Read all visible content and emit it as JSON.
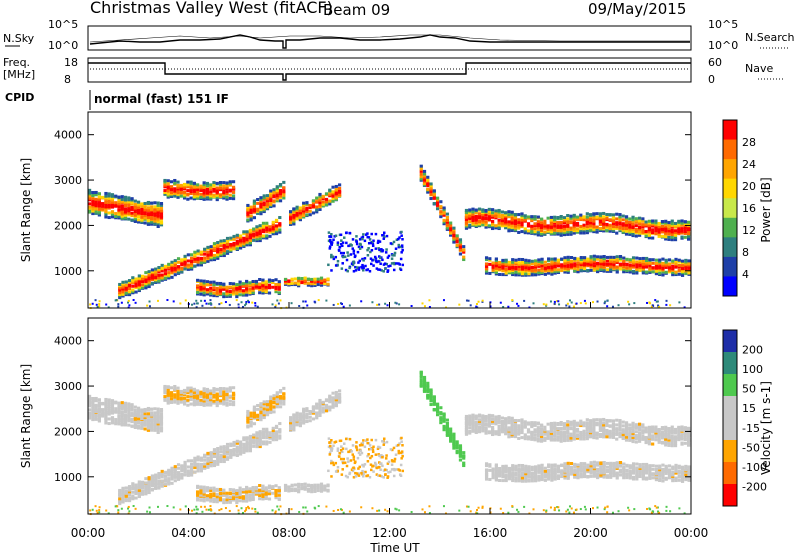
{
  "header": {
    "station": "Christmas Valley West (fitACF)",
    "beam": "Beam 09",
    "date": "09/May/2015"
  },
  "top_panels": {
    "nsky_label": "N.Sky",
    "nsky_ticks": [
      "10^5",
      "10^0"
    ],
    "nsearch_label": "N.Search",
    "freq_label": "Freq.",
    "freq_unit": "[MHz]",
    "freq_ticks": [
      "18",
      "8"
    ],
    "nave_label": "Nave",
    "nave_ticks": [
      "60",
      "0"
    ],
    "cpid_label": "CPID",
    "cpid_text": "normal (fast) 151 IF"
  },
  "chart_data": [
    {
      "type": "heatmap",
      "title": "Power",
      "xlabel": "Time UT",
      "ylabel": "Slant Range [km]",
      "y_ticks": [
        "4000",
        "3000",
        "2000",
        "1000"
      ],
      "ylim": [
        180,
        4500
      ],
      "xlim": [
        "00:00",
        "24:00"
      ],
      "colorbar_label": "Power [dB]",
      "colorbar_ticks": [
        "28",
        "24",
        "20",
        "16",
        "12",
        "8",
        "4"
      ],
      "colorbar_colors": [
        "#ff0000",
        "#ff6a00",
        "#ffa500",
        "#ffd700",
        "#c8e84a",
        "#4fb04f",
        "#2e7f7f",
        "#1e3fa8",
        "#0000ff"
      ],
      "bands": [
        {
          "t": [
            0.0,
            2.9
          ],
          "r": [
            2300,
            2900
          ]
        },
        {
          "t": [
            1.2,
            7.5
          ],
          "r": [
            500,
            2400
          ]
        },
        {
          "t": [
            3.0,
            5.9
          ],
          "r": [
            2600,
            3200
          ]
        },
        {
          "t": [
            4.5,
            7.5
          ],
          "r": [
            200,
            800
          ]
        },
        {
          "t": [
            15.0,
            24.0
          ],
          "r": [
            1700,
            2500
          ]
        },
        {
          "t": [
            16.0,
            24.0
          ],
          "r": [
            900,
            1500
          ]
        },
        {
          "t": [
            13.2,
            15.0
          ],
          "r": [
            1300,
            3300
          ]
        }
      ]
    },
    {
      "type": "heatmap",
      "title": "Velocity",
      "xlabel": "Time UT",
      "ylabel": "Slant Range [km]",
      "y_ticks": [
        "4000",
        "3000",
        "2000",
        "1000"
      ],
      "ylim": [
        180,
        4500
      ],
      "xlim": [
        "00:00",
        "24:00"
      ],
      "colorbar_label": "Velocity [m s-1]",
      "colorbar_ticks": [
        "200",
        "100",
        "50",
        "15",
        "-15",
        "-50",
        "-100",
        "-200"
      ],
      "colorbar_colors": [
        "#1e2ea8",
        "#2e8a7a",
        "#4fc94f",
        "#c8c8c8",
        "#c8c8c8",
        "#ffa500",
        "#ff6a00",
        "#ff0000"
      ]
    }
  ],
  "x_ticks": [
    "00:00",
    "04:00",
    "08:00",
    "12:00",
    "16:00",
    "20:00",
    "00:00"
  ],
  "x_label": "Time UT"
}
